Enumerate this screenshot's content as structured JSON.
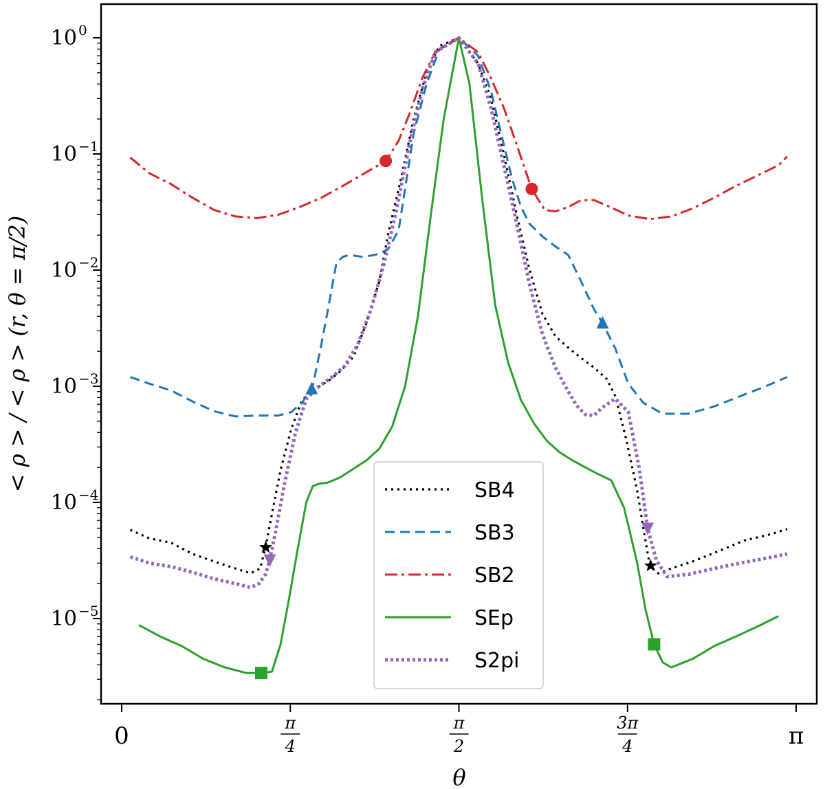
{
  "chart_data": {
    "type": "line",
    "xlabel": "θ",
    "ylabel": "< ρ > / < ρ > (r, θ = π/2)",
    "yscale": "log",
    "ylim": [
      1.5e-06,
      1.8
    ],
    "xlim": [
      -0.05,
      3.2
    ],
    "x_ticks": [
      {
        "value": 0,
        "label": "0"
      },
      {
        "value": 0.7854,
        "num": "π",
        "den": "4"
      },
      {
        "value": 1.5708,
        "num": "π",
        "den": "2"
      },
      {
        "value": 2.3562,
        "num": "3π",
        "den": "4"
      },
      {
        "value": 3.1416,
        "label": "π"
      }
    ],
    "y_ticks": [
      {
        "value": 1,
        "base": "10",
        "exp": "0"
      },
      {
        "value": 0.1,
        "base": "10",
        "exp": "−1"
      },
      {
        "value": 0.01,
        "base": "10",
        "exp": "−2"
      },
      {
        "value": 0.001,
        "base": "10",
        "exp": "−3"
      },
      {
        "value": 0.0001,
        "base": "10",
        "exp": "−4"
      },
      {
        "value": 1e-05,
        "base": "10",
        "exp": "−5"
      }
    ],
    "legend_position": "lower-center",
    "series": [
      {
        "name": "SB4",
        "color": "#000000",
        "dash": "3,6",
        "width": 3.2,
        "marker": "star",
        "marker_points": [
          [
            0.671,
            4.1e-05
          ],
          [
            2.464,
            2.85e-05
          ]
        ],
        "x": [
          0.04,
          0.13,
          0.23,
          0.33,
          0.43,
          0.53,
          0.6,
          0.645,
          0.67,
          0.7,
          0.74,
          0.79,
          0.84,
          0.9,
          0.96,
          1.02,
          1.08,
          1.14,
          1.2,
          1.24,
          1.3,
          1.36,
          1.42,
          1.48,
          1.5708,
          1.66,
          1.72,
          1.78,
          1.84,
          1.9,
          1.96,
          2.02,
          2.08,
          2.14,
          2.2,
          2.26,
          2.3,
          2.35,
          2.4,
          2.43,
          2.46,
          2.5,
          2.56,
          2.66,
          2.78,
          2.9,
          3.02,
          3.1
        ],
        "y": [
          5.8e-05,
          4.9e-05,
          4.5e-05,
          3.6e-05,
          3.1e-05,
          2.7e-05,
          2.45e-05,
          2.7e-05,
          4.1e-05,
          8e-05,
          0.00019,
          0.00043,
          0.00076,
          0.00095,
          0.0011,
          0.00135,
          0.0018,
          0.0035,
          0.008,
          0.02,
          0.06,
          0.2,
          0.5,
          0.85,
          1.0,
          0.6,
          0.3,
          0.1,
          0.03,
          0.01,
          0.0042,
          0.0027,
          0.00215,
          0.00175,
          0.00145,
          0.00115,
          0.00082,
          0.00035,
          0.00013,
          6e-05,
          2.85e-05,
          2.45e-05,
          2.7e-05,
          3.1e-05,
          3.8e-05,
          4.7e-05,
          5.3e-05,
          5.9e-05
        ]
      },
      {
        "name": "SB3",
        "color": "#1f77b4",
        "dash": "14,8",
        "width": 3,
        "marker": "triangle-up",
        "marker_points": [
          [
            0.885,
            0.00095
          ],
          [
            2.24,
            0.0035
          ]
        ],
        "x": [
          0.04,
          0.13,
          0.23,
          0.33,
          0.43,
          0.53,
          0.63,
          0.73,
          0.79,
          0.84,
          0.89,
          0.93,
          0.96,
          1.0,
          1.03,
          1.06,
          1.12,
          1.18,
          1.24,
          1.29,
          1.32,
          1.36,
          1.42,
          1.48,
          1.5708,
          1.66,
          1.72,
          1.78,
          1.82,
          1.86,
          1.9,
          1.96,
          2.02,
          2.08,
          2.14,
          2.2,
          2.24,
          2.3,
          2.36,
          2.43,
          2.52,
          2.64,
          2.76,
          2.88,
          3.0,
          3.1
        ],
        "y": [
          0.0012,
          0.00105,
          0.00092,
          0.00074,
          0.00061,
          0.00055,
          0.00056,
          0.00056,
          0.0006,
          0.00072,
          0.001,
          0.0023,
          0.0045,
          0.0115,
          0.013,
          0.0135,
          0.013,
          0.0135,
          0.015,
          0.022,
          0.05,
          0.15,
          0.4,
          0.8,
          1.0,
          0.7,
          0.35,
          0.12,
          0.06,
          0.035,
          0.025,
          0.0195,
          0.016,
          0.0135,
          0.008,
          0.0046,
          0.0035,
          0.0021,
          0.00105,
          0.00072,
          0.00058,
          0.00058,
          0.00067,
          0.00082,
          0.001,
          0.0012
        ]
      },
      {
        "name": "SB2",
        "color": "#d62728",
        "dash": "18,6,4,6",
        "width": 3,
        "marker": "circle",
        "marker_points": [
          [
            1.23,
            0.087
          ],
          [
            1.91,
            0.05
          ]
        ],
        "x": [
          0.04,
          0.13,
          0.23,
          0.33,
          0.43,
          0.53,
          0.63,
          0.73,
          0.83,
          0.93,
          1.03,
          1.13,
          1.23,
          1.29,
          1.34,
          1.4,
          1.46,
          1.5708,
          1.66,
          1.72,
          1.78,
          1.84,
          1.91,
          1.97,
          2.02,
          2.08,
          2.14,
          2.2,
          2.26,
          2.36,
          2.46,
          2.56,
          2.66,
          2.76,
          2.86,
          2.96,
          3.06,
          3.1
        ],
        "y": [
          0.093,
          0.068,
          0.055,
          0.042,
          0.033,
          0.029,
          0.028,
          0.03,
          0.035,
          0.042,
          0.053,
          0.068,
          0.087,
          0.13,
          0.22,
          0.45,
          0.75,
          1.0,
          0.75,
          0.45,
          0.25,
          0.12,
          0.05,
          0.033,
          0.032,
          0.035,
          0.04,
          0.04,
          0.036,
          0.0295,
          0.0275,
          0.029,
          0.034,
          0.042,
          0.053,
          0.065,
          0.08,
          0.095
        ]
      },
      {
        "name": "SEp",
        "color": "#2ca02c",
        "dash": "none",
        "width": 3,
        "marker": "square",
        "marker_points": [
          [
            0.65,
            3.4e-06
          ],
          [
            2.48,
            6e-06
          ]
        ],
        "x": [
          0.08,
          0.18,
          0.28,
          0.38,
          0.48,
          0.58,
          0.65,
          0.7,
          0.74,
          0.78,
          0.82,
          0.86,
          0.89,
          0.92,
          0.96,
          1.02,
          1.08,
          1.14,
          1.2,
          1.26,
          1.32,
          1.38,
          1.44,
          1.5,
          1.5708,
          1.62,
          1.68,
          1.74,
          1.8,
          1.86,
          1.92,
          1.98,
          2.04,
          2.1,
          2.16,
          2.22,
          2.28,
          2.34,
          2.4,
          2.44,
          2.48,
          2.52,
          2.56,
          2.66,
          2.76,
          2.86,
          2.96,
          3.06
        ],
        "y": [
          8.8e-06,
          7e-06,
          5.8e-06,
          4.5e-06,
          3.8e-06,
          3.4e-06,
          3.4e-06,
          3.5e-06,
          6e-06,
          1.5e-05,
          4e-05,
          0.0001,
          0.000138,
          0.000145,
          0.000148,
          0.000165,
          0.000195,
          0.00023,
          0.00029,
          0.00045,
          0.001,
          0.004,
          0.03,
          0.2,
          1.0,
          0.4,
          0.04,
          0.005,
          0.0016,
          0.00076,
          0.00048,
          0.00034,
          0.00027,
          0.00023,
          0.0002,
          0.000175,
          0.000155,
          9e-05,
          3.1e-05,
          1.2e-05,
          6e-06,
          4.2e-06,
          3.8e-06,
          4.5e-06,
          5.8e-06,
          7e-06,
          8.5e-06,
          1.05e-05
        ]
      },
      {
        "name": "S2pi",
        "color": "#9467bd",
        "dash": "4,4",
        "width": 5,
        "marker": "triangle-down",
        "marker_points": [
          [
            0.69,
            3.2e-05
          ],
          [
            2.45,
            6e-05
          ]
        ],
        "x": [
          0.04,
          0.13,
          0.23,
          0.33,
          0.43,
          0.53,
          0.6,
          0.64,
          0.67,
          0.69,
          0.72,
          0.76,
          0.81,
          0.86,
          0.92,
          0.98,
          1.04,
          1.1,
          1.16,
          1.22,
          1.28,
          1.34,
          1.4,
          1.46,
          1.5708,
          1.66,
          1.72,
          1.78,
          1.84,
          1.9,
          1.96,
          2.02,
          2.08,
          2.12,
          2.16,
          2.2,
          2.24,
          2.3,
          2.36,
          2.41,
          2.45,
          2.49,
          2.54,
          2.64,
          2.76,
          2.88,
          3.0,
          3.1
        ],
        "y": [
          3.4e-05,
          3e-05,
          2.8e-05,
          2.5e-05,
          2.2e-05,
          2e-05,
          1.85e-05,
          2e-05,
          2.4e-05,
          3.2e-05,
          6e-05,
          0.00015,
          0.0004,
          0.00078,
          0.001,
          0.0012,
          0.0015,
          0.0023,
          0.0045,
          0.011,
          0.033,
          0.12,
          0.36,
          0.75,
          1.0,
          0.6,
          0.25,
          0.08,
          0.025,
          0.0075,
          0.0028,
          0.00145,
          0.0009,
          0.00068,
          0.00057,
          0.00056,
          0.00066,
          0.00078,
          0.0006,
          0.0002,
          6e-05,
          3.2e-05,
          2.3e-05,
          2.4e-05,
          2.7e-05,
          3e-05,
          3.3e-05,
          3.6e-05
        ]
      }
    ]
  }
}
